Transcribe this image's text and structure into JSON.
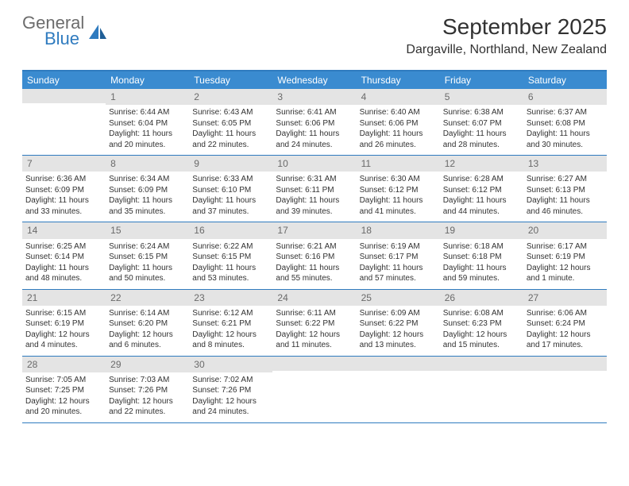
{
  "logo": {
    "top": "General",
    "bottom": "Blue"
  },
  "title": "September 2025",
  "location": "Dargaville, Northland, New Zealand",
  "colors": {
    "header_bar": "#3a8bd0",
    "border": "#2f7bbf",
    "daynum_bg": "#e4e4e4",
    "text": "#323232",
    "logo_gray": "#6c6c6c",
    "logo_blue": "#2f7bbf"
  },
  "weekdays": [
    "Sunday",
    "Monday",
    "Tuesday",
    "Wednesday",
    "Thursday",
    "Friday",
    "Saturday"
  ],
  "weeks": [
    [
      {
        "n": "",
        "lines": []
      },
      {
        "n": "1",
        "lines": [
          "Sunrise: 6:44 AM",
          "Sunset: 6:04 PM",
          "Daylight: 11 hours",
          "and 20 minutes."
        ]
      },
      {
        "n": "2",
        "lines": [
          "Sunrise: 6:43 AM",
          "Sunset: 6:05 PM",
          "Daylight: 11 hours",
          "and 22 minutes."
        ]
      },
      {
        "n": "3",
        "lines": [
          "Sunrise: 6:41 AM",
          "Sunset: 6:06 PM",
          "Daylight: 11 hours",
          "and 24 minutes."
        ]
      },
      {
        "n": "4",
        "lines": [
          "Sunrise: 6:40 AM",
          "Sunset: 6:06 PM",
          "Daylight: 11 hours",
          "and 26 minutes."
        ]
      },
      {
        "n": "5",
        "lines": [
          "Sunrise: 6:38 AM",
          "Sunset: 6:07 PM",
          "Daylight: 11 hours",
          "and 28 minutes."
        ]
      },
      {
        "n": "6",
        "lines": [
          "Sunrise: 6:37 AM",
          "Sunset: 6:08 PM",
          "Daylight: 11 hours",
          "and 30 minutes."
        ]
      }
    ],
    [
      {
        "n": "7",
        "lines": [
          "Sunrise: 6:36 AM",
          "Sunset: 6:09 PM",
          "Daylight: 11 hours",
          "and 33 minutes."
        ]
      },
      {
        "n": "8",
        "lines": [
          "Sunrise: 6:34 AM",
          "Sunset: 6:09 PM",
          "Daylight: 11 hours",
          "and 35 minutes."
        ]
      },
      {
        "n": "9",
        "lines": [
          "Sunrise: 6:33 AM",
          "Sunset: 6:10 PM",
          "Daylight: 11 hours",
          "and 37 minutes."
        ]
      },
      {
        "n": "10",
        "lines": [
          "Sunrise: 6:31 AM",
          "Sunset: 6:11 PM",
          "Daylight: 11 hours",
          "and 39 minutes."
        ]
      },
      {
        "n": "11",
        "lines": [
          "Sunrise: 6:30 AM",
          "Sunset: 6:12 PM",
          "Daylight: 11 hours",
          "and 41 minutes."
        ]
      },
      {
        "n": "12",
        "lines": [
          "Sunrise: 6:28 AM",
          "Sunset: 6:12 PM",
          "Daylight: 11 hours",
          "and 44 minutes."
        ]
      },
      {
        "n": "13",
        "lines": [
          "Sunrise: 6:27 AM",
          "Sunset: 6:13 PM",
          "Daylight: 11 hours",
          "and 46 minutes."
        ]
      }
    ],
    [
      {
        "n": "14",
        "lines": [
          "Sunrise: 6:25 AM",
          "Sunset: 6:14 PM",
          "Daylight: 11 hours",
          "and 48 minutes."
        ]
      },
      {
        "n": "15",
        "lines": [
          "Sunrise: 6:24 AM",
          "Sunset: 6:15 PM",
          "Daylight: 11 hours",
          "and 50 minutes."
        ]
      },
      {
        "n": "16",
        "lines": [
          "Sunrise: 6:22 AM",
          "Sunset: 6:15 PM",
          "Daylight: 11 hours",
          "and 53 minutes."
        ]
      },
      {
        "n": "17",
        "lines": [
          "Sunrise: 6:21 AM",
          "Sunset: 6:16 PM",
          "Daylight: 11 hours",
          "and 55 minutes."
        ]
      },
      {
        "n": "18",
        "lines": [
          "Sunrise: 6:19 AM",
          "Sunset: 6:17 PM",
          "Daylight: 11 hours",
          "and 57 minutes."
        ]
      },
      {
        "n": "19",
        "lines": [
          "Sunrise: 6:18 AM",
          "Sunset: 6:18 PM",
          "Daylight: 11 hours",
          "and 59 minutes."
        ]
      },
      {
        "n": "20",
        "lines": [
          "Sunrise: 6:17 AM",
          "Sunset: 6:19 PM",
          "Daylight: 12 hours",
          "and 1 minute."
        ]
      }
    ],
    [
      {
        "n": "21",
        "lines": [
          "Sunrise: 6:15 AM",
          "Sunset: 6:19 PM",
          "Daylight: 12 hours",
          "and 4 minutes."
        ]
      },
      {
        "n": "22",
        "lines": [
          "Sunrise: 6:14 AM",
          "Sunset: 6:20 PM",
          "Daylight: 12 hours",
          "and 6 minutes."
        ]
      },
      {
        "n": "23",
        "lines": [
          "Sunrise: 6:12 AM",
          "Sunset: 6:21 PM",
          "Daylight: 12 hours",
          "and 8 minutes."
        ]
      },
      {
        "n": "24",
        "lines": [
          "Sunrise: 6:11 AM",
          "Sunset: 6:22 PM",
          "Daylight: 12 hours",
          "and 11 minutes."
        ]
      },
      {
        "n": "25",
        "lines": [
          "Sunrise: 6:09 AM",
          "Sunset: 6:22 PM",
          "Daylight: 12 hours",
          "and 13 minutes."
        ]
      },
      {
        "n": "26",
        "lines": [
          "Sunrise: 6:08 AM",
          "Sunset: 6:23 PM",
          "Daylight: 12 hours",
          "and 15 minutes."
        ]
      },
      {
        "n": "27",
        "lines": [
          "Sunrise: 6:06 AM",
          "Sunset: 6:24 PM",
          "Daylight: 12 hours",
          "and 17 minutes."
        ]
      }
    ],
    [
      {
        "n": "28",
        "lines": [
          "Sunrise: 7:05 AM",
          "Sunset: 7:25 PM",
          "Daylight: 12 hours",
          "and 20 minutes."
        ]
      },
      {
        "n": "29",
        "lines": [
          "Sunrise: 7:03 AM",
          "Sunset: 7:26 PM",
          "Daylight: 12 hours",
          "and 22 minutes."
        ]
      },
      {
        "n": "30",
        "lines": [
          "Sunrise: 7:02 AM",
          "Sunset: 7:26 PM",
          "Daylight: 12 hours",
          "and 24 minutes."
        ]
      },
      {
        "n": "",
        "lines": []
      },
      {
        "n": "",
        "lines": []
      },
      {
        "n": "",
        "lines": []
      },
      {
        "n": "",
        "lines": []
      }
    ]
  ]
}
